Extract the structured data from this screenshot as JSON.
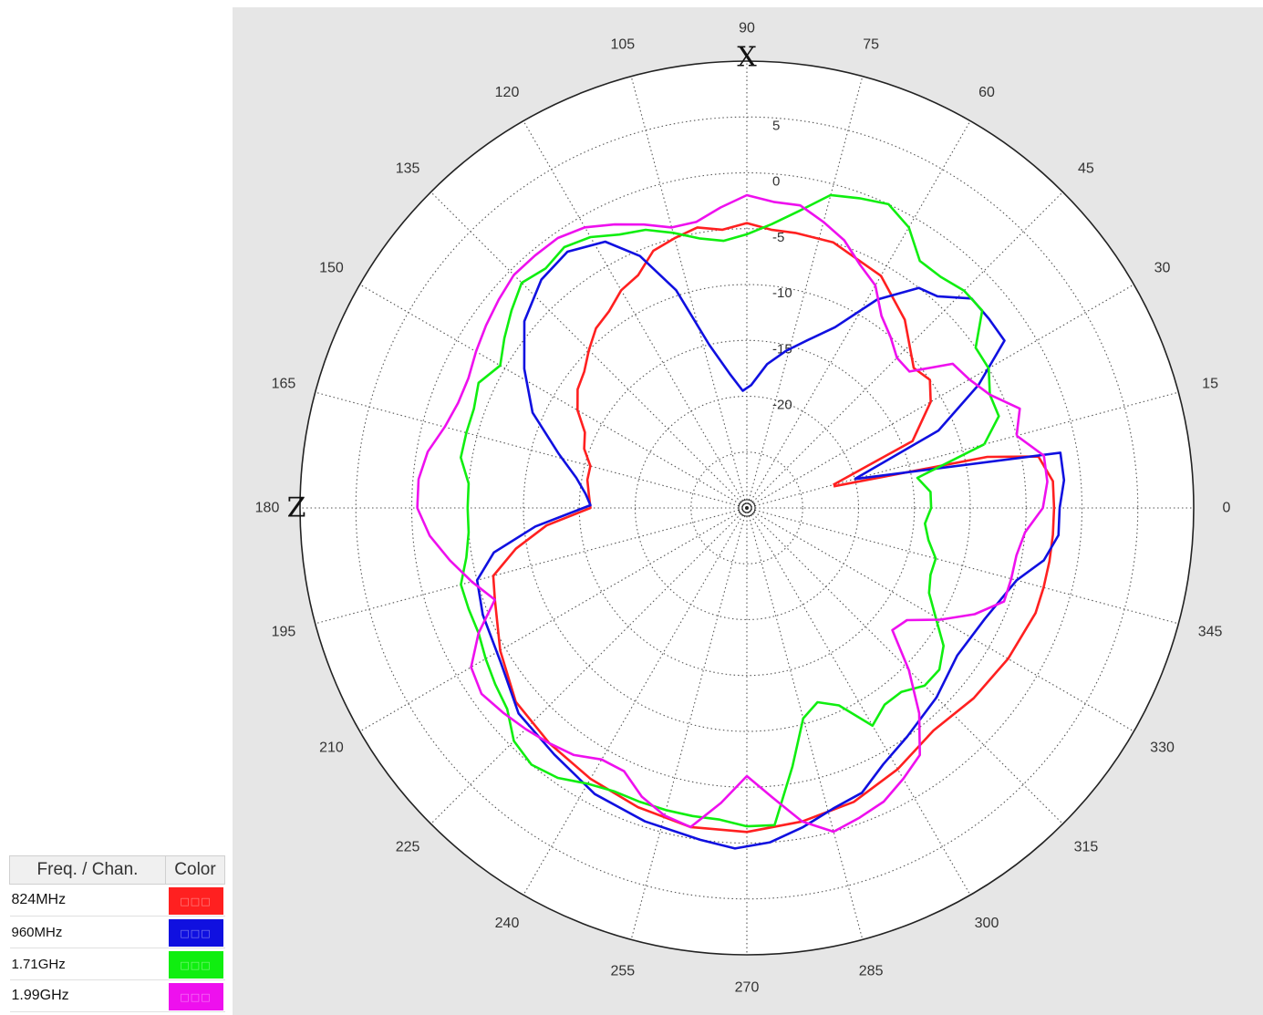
{
  "chart_data": {
    "type": "polar-line",
    "title": "",
    "theta_unit": "degrees",
    "theta_ticks": [
      0,
      15,
      30,
      45,
      60,
      75,
      90,
      105,
      120,
      135,
      150,
      165,
      180,
      195,
      210,
      225,
      240,
      255,
      270,
      285,
      300,
      315,
      330,
      345
    ],
    "r_ticks": [
      5,
      0,
      -5,
      -10,
      -15,
      -20
    ],
    "r_range": [
      -30,
      10
    ],
    "axis_letters": [
      {
        "text": "X",
        "theta": 90
      },
      {
        "text": "Z",
        "theta": 180
      }
    ],
    "grid": true,
    "series": [
      {
        "name": "824MHz",
        "color": "#ff2020",
        "theta": [
          15,
          22,
          30,
          35,
          40,
          50,
          60,
          72,
          80,
          85,
          90,
          95,
          100,
          105,
          110,
          115,
          120,
          125,
          130,
          135,
          140,
          145,
          150,
          155,
          160,
          165,
          170,
          175,
          180,
          185,
          190,
          195,
          200,
          210,
          220,
          230,
          240,
          250,
          260,
          270,
          280,
          290,
          300,
          310,
          320,
          330,
          340,
          345,
          350,
          355,
          0,
          5,
          10,
          12,
          14
        ],
        "r": [
          -22,
          -14,
          -11,
          -10,
          -10.5,
          -8,
          -6,
          -5,
          -5,
          -5,
          -4.5,
          -5,
          -4.5,
          -5,
          -5.5,
          -7,
          -7.5,
          -8.5,
          -9,
          -10,
          -11,
          -11.5,
          -12.5,
          -14,
          -14.5,
          -15.5,
          -15.5,
          -15.8,
          -16,
          -12,
          -9,
          -6.5,
          -6,
          -4.5,
          -3,
          -2.5,
          -2,
          -1.5,
          -1,
          -1,
          -1.5,
          -2,
          -3,
          -4,
          -3.5,
          -3,
          -2.5,
          -2.5,
          -2.5,
          -2.5,
          -2.5,
          -2.5,
          -3.5,
          -8,
          -22
        ]
      },
      {
        "name": "960MHz",
        "color": "#1010e0",
        "theta": [
          15,
          22,
          28,
          33,
          38,
          43,
          48,
          52,
          58,
          64,
          70,
          76,
          82,
          88,
          92,
          97,
          103,
          108,
          113,
          118,
          125,
          132,
          140,
          148,
          156,
          164,
          170,
          175,
          179,
          185,
          190,
          195,
          202,
          212,
          222,
          232,
          242,
          252,
          262,
          268,
          274,
          280,
          286,
          292,
          298,
          305,
          315,
          325,
          335,
          345,
          350,
          355,
          0,
          5,
          10,
          15
        ],
        "r": [
          -20,
          -11.5,
          -6.5,
          -2.5,
          -2.5,
          -2.5,
          -4.5,
          -5,
          -8,
          -12,
          -14,
          -15.5,
          -17,
          -19,
          -19.5,
          -18,
          -15,
          -9.5,
          -5.5,
          -3,
          -2,
          -2.5,
          -4,
          -6.5,
          -9,
          -12.5,
          -14.5,
          -15.5,
          -16,
          -11,
          -7,
          -5,
          -4.5,
          -4,
          -2.5,
          -2,
          -1,
          -0.5,
          0,
          0.5,
          0,
          -1,
          -2,
          -2.5,
          -4,
          -5,
          -6,
          -7,
          -6.5,
          -5,
          -3,
          -2,
          -2,
          -1.5,
          -1.5,
          -20
        ]
      },
      {
        "name": "1.71GHz",
        "color": "#10ee10",
        "theta": [
          15,
          20,
          25,
          30,
          35,
          40,
          45,
          50,
          55,
          60,
          65,
          70,
          75,
          80,
          85,
          90,
          95,
          100,
          105,
          110,
          115,
          120,
          125,
          130,
          135,
          140,
          145,
          150,
          155,
          160,
          165,
          170,
          175,
          180,
          185,
          190,
          195,
          200,
          205,
          210,
          215,
          220,
          225,
          230,
          235,
          240,
          245,
          250,
          255,
          260,
          265,
          270,
          275,
          280,
          285,
          290,
          295,
          300,
          305,
          310,
          315,
          320,
          325,
          330,
          335,
          340,
          345,
          350,
          355,
          0,
          5,
          10,
          15
        ],
        "r": [
          -8,
          -6,
          -6,
          -5,
          -5,
          -2.5,
          -2.5,
          -3,
          -3,
          -1,
          0,
          -0.5,
          -1,
          -3,
          -4.5,
          -5.5,
          -6,
          -5.5,
          -4.5,
          -3.5,
          -3,
          -2,
          -1.5,
          -2,
          -1.5,
          -2.5,
          -3.5,
          -4.5,
          -3.5,
          -4,
          -4,
          -4,
          -5,
          -5,
          -5,
          -4.5,
          -3.5,
          -3.5,
          -3.5,
          -3,
          -2.5,
          -2,
          -0.5,
          0,
          -0.5,
          -1.5,
          -2,
          -2,
          -2,
          -2,
          -2,
          -1.5,
          -1.5,
          -6.5,
          -10.5,
          -11.5,
          -10.5,
          -7.5,
          -8.5,
          -8.5,
          -7.5,
          -7.5,
          -8.5,
          -10.5,
          -12,
          -12.5,
          -12.5,
          -13.5,
          -14,
          -13.5,
          -13.5,
          -14.5,
          -8
        ]
      },
      {
        "name": "1.99GHz",
        "color": "#ee10ee",
        "theta": [
          15,
          20,
          25,
          30,
          35,
          40,
          45,
          50,
          55,
          60,
          65,
          70,
          75,
          80,
          85,
          90,
          95,
          100,
          105,
          110,
          115,
          120,
          125,
          130,
          135,
          140,
          145,
          150,
          155,
          160,
          165,
          170,
          175,
          180,
          185,
          190,
          195,
          200,
          205,
          210,
          215,
          220,
          225,
          230,
          235,
          240,
          245,
          250,
          255,
          260,
          265,
          270,
          275,
          280,
          285,
          290,
          295,
          300,
          305,
          310,
          315,
          320,
          325,
          330,
          335,
          340,
          345,
          350,
          355,
          0,
          5,
          10,
          15
        ],
        "r": [
          -5,
          -4,
          -6,
          -7,
          -7.5,
          -11,
          -11,
          -10,
          -9,
          -7,
          -6,
          -4.5,
          -3.5,
          -2.5,
          -2.5,
          -2,
          -3,
          -4,
          -4,
          -3,
          -2,
          -1,
          -0.5,
          -0.5,
          -0.5,
          -1,
          -1.5,
          -2,
          -2.5,
          -2.5,
          -2,
          -1,
          -0.5,
          -0.5,
          -1.5,
          -3,
          -4.5,
          -6,
          -3.5,
          -1.5,
          -1,
          -1.5,
          -2,
          -2.5,
          -3,
          -4,
          -4,
          -2.5,
          -1.5,
          -1,
          -3.5,
          -6,
          -4,
          -1.5,
          0,
          -0.5,
          -1,
          -2,
          -3,
          -6,
          -9.5,
          -13,
          -12.5,
          -10,
          -7.5,
          -5.5,
          -5.5,
          -5.5,
          -5,
          -3.5,
          -3,
          -3,
          -5
        ]
      }
    ]
  },
  "legend": {
    "header_freq": "Freq. / Chan.",
    "header_color": "Color",
    "swatch_glyph": "□□□",
    "rows": [
      {
        "label": "824MHz",
        "color": "#ff2020"
      },
      {
        "label": "960MHz",
        "color": "#1010e0"
      },
      {
        "label": "1.71GHz",
        "color": "#10ee10"
      },
      {
        "label": "1.99GHz",
        "color": "#ee10ee"
      }
    ]
  }
}
